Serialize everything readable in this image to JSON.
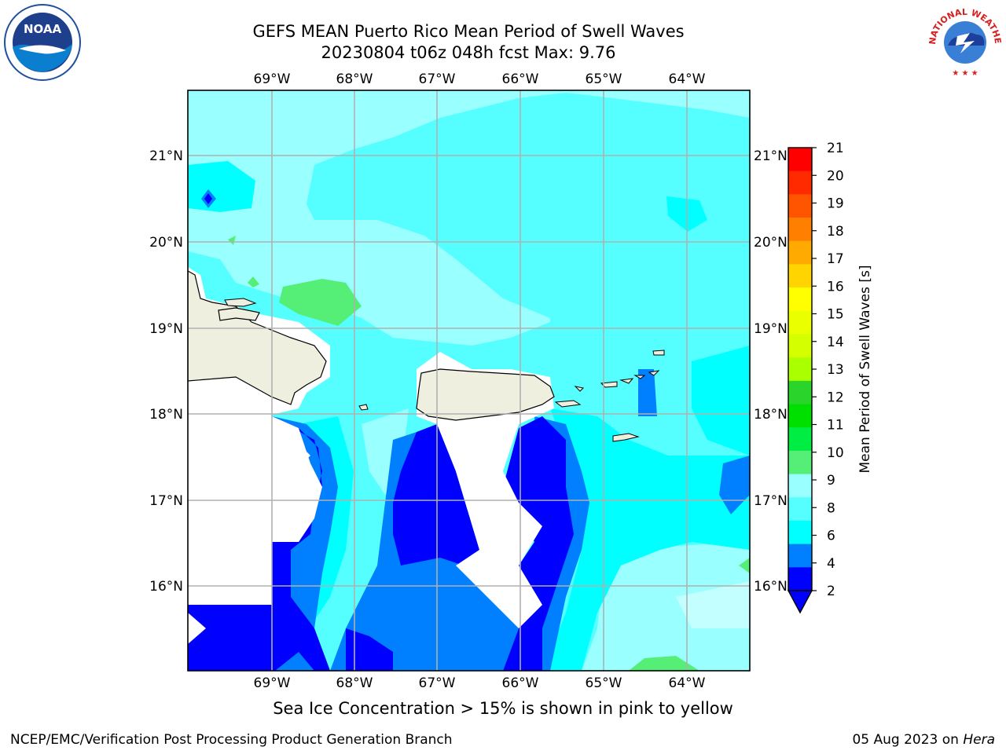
{
  "title": {
    "line1": "GEFS MEAN Puerto Rico Mean Period of Swell Waves",
    "line2": "20230804 t06z 048h fcst   Max: 9.76"
  },
  "map": {
    "lon_labels": [
      "69°W",
      "68°W",
      "67°W",
      "66°W",
      "65°W",
      "64°W"
    ],
    "lat_labels": [
      "21°N",
      "20°N",
      "19°N",
      "18°N",
      "17°N",
      "16°N"
    ]
  },
  "colorbar": {
    "label": "Mean Period of Swell Waves [s]",
    "ticks": [
      "21",
      "20",
      "19",
      "18",
      "17",
      "16",
      "15",
      "14",
      "13",
      "12",
      "11",
      "10",
      "9",
      "8",
      "6",
      "4",
      "2"
    ],
    "colors": [
      "#ff0000",
      "#ff2a00",
      "#ff5500",
      "#ff8000",
      "#ffaa00",
      "#ffd400",
      "#ffff00",
      "#eaff00",
      "#d4ff00",
      "#aaff00",
      "#2ad42a",
      "#00e000",
      "#00ee44",
      "#55ee77",
      "#99ffff",
      "#55ffff",
      "#00ffff",
      "#0080ff",
      "#0000ff"
    ]
  },
  "ice_note": "Sea Ice Concentration > 15% is shown in pink to yellow",
  "footer": {
    "left": "NCEP/EMC/Verification Post Processing Product Generation Branch",
    "date": "05 Aug 2023 on ",
    "host": "Hera"
  },
  "logos": {
    "noaa_text": "NOAA",
    "nws_text": "NATIONAL WEATHER SERVICE"
  }
}
